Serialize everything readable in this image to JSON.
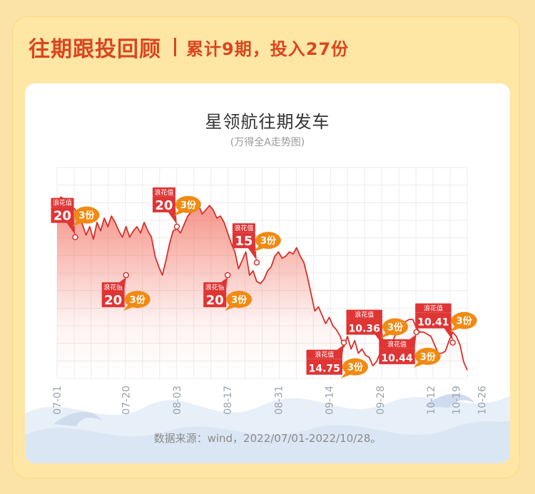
{
  "header": {
    "title": "往期跟投回顾",
    "subtitle": "累计9期，投入27份"
  },
  "chart_data": {
    "type": "line",
    "title": "星领航往期发车",
    "subtitle": "(万得全A走势图)",
    "x_ticks": [
      "07-01",
      "07-20",
      "08-03",
      "08-17",
      "08-31",
      "09-14",
      "09-28",
      "10-12",
      "10-19",
      "10-26"
    ],
    "grid": true,
    "series": [
      {
        "values": [
          [
            "07-01",
            83
          ],
          [
            "07-02",
            86
          ],
          [
            "07-03",
            85
          ],
          [
            "07-04",
            80
          ],
          [
            "07-05",
            82
          ],
          [
            "07-06",
            80
          ],
          [
            "07-07",
            77
          ],
          [
            "07-08",
            73
          ],
          [
            "07-09",
            68
          ],
          [
            "07-10",
            72
          ],
          [
            "07-11",
            66
          ],
          [
            "07-12",
            74
          ],
          [
            "07-13",
            70
          ],
          [
            "07-14",
            76
          ],
          [
            "07-15",
            72
          ],
          [
            "07-16",
            77
          ],
          [
            "07-17",
            74
          ],
          [
            "07-18",
            70
          ],
          [
            "07-19",
            67
          ],
          [
            "07-20",
            72
          ],
          [
            "07-21",
            67
          ],
          [
            "07-22",
            70
          ],
          [
            "07-23",
            72
          ],
          [
            "07-24",
            69
          ],
          [
            "07-25",
            74
          ],
          [
            "07-26",
            70
          ],
          [
            "07-27",
            67
          ],
          [
            "07-28",
            58
          ],
          [
            "07-29",
            53
          ],
          [
            "07-30",
            49
          ],
          [
            "07-31",
            56
          ],
          [
            "08-01",
            64
          ],
          [
            "08-02",
            70
          ],
          [
            "08-03",
            71
          ],
          [
            "08-04",
            69
          ],
          [
            "08-05",
            73
          ],
          [
            "08-06",
            77
          ],
          [
            "08-07",
            79
          ],
          [
            "08-08",
            80
          ],
          [
            "08-09",
            82
          ],
          [
            "08-10",
            78
          ],
          [
            "08-11",
            80
          ],
          [
            "08-12",
            82
          ],
          [
            "08-13",
            80
          ],
          [
            "08-14",
            76
          ],
          [
            "08-15",
            77
          ],
          [
            "08-16",
            74
          ],
          [
            "08-17",
            69
          ],
          [
            "08-18",
            64
          ],
          [
            "08-19",
            60
          ],
          [
            "08-20",
            52
          ],
          [
            "08-21",
            56
          ],
          [
            "08-22",
            60
          ],
          [
            "08-23",
            49
          ],
          [
            "08-24",
            51
          ],
          [
            "08-25",
            46
          ],
          [
            "08-26",
            45
          ],
          [
            "08-27",
            47
          ],
          [
            "08-28",
            51
          ],
          [
            "08-29",
            53
          ],
          [
            "08-30",
            58
          ],
          [
            "08-31",
            60
          ],
          [
            "09-01",
            57
          ],
          [
            "09-02",
            58
          ],
          [
            "09-03",
            60
          ],
          [
            "09-04",
            59
          ],
          [
            "09-05",
            62
          ],
          [
            "09-06",
            58
          ],
          [
            "09-07",
            55
          ],
          [
            "09-08",
            48
          ],
          [
            "09-09",
            40
          ],
          [
            "09-10",
            32
          ],
          [
            "09-11",
            34
          ],
          [
            "09-12",
            30
          ],
          [
            "09-13",
            26
          ],
          [
            "09-14",
            29
          ],
          [
            "09-15",
            25
          ],
          [
            "09-16",
            23
          ],
          [
            "09-17",
            20
          ],
          [
            "09-18",
            15
          ],
          [
            "09-19",
            20
          ],
          [
            "09-20",
            14
          ],
          [
            "09-21",
            18
          ],
          [
            "09-22",
            12
          ],
          [
            "09-23",
            14
          ],
          [
            "09-24",
            11
          ],
          [
            "09-25",
            10
          ],
          [
            "09-26",
            6
          ],
          [
            "09-27",
            8
          ],
          [
            "09-28",
            12
          ],
          [
            "09-29",
            9
          ],
          [
            "09-30",
            12
          ],
          [
            "10-01",
            15
          ],
          [
            "10-02",
            20
          ],
          [
            "10-03",
            22
          ],
          [
            "10-04",
            25
          ],
          [
            "10-05",
            27
          ],
          [
            "10-06",
            28
          ],
          [
            "10-07",
            28
          ],
          [
            "10-08",
            24
          ],
          [
            "10-09",
            22
          ],
          [
            "10-10",
            22
          ],
          [
            "10-11",
            21
          ],
          [
            "10-12",
            20
          ],
          [
            "10-13",
            16
          ],
          [
            "10-14",
            12
          ],
          [
            "10-15",
            12
          ],
          [
            "10-16",
            13
          ],
          [
            "10-17",
            18
          ],
          [
            "10-18",
            22
          ],
          [
            "10-19",
            20
          ],
          [
            "10-20",
            16
          ],
          [
            "10-21",
            8
          ],
          [
            "10-22",
            4
          ]
        ]
      }
    ],
    "markers": [
      {
        "x": "07-06",
        "y": 67,
        "label": "浪花值",
        "value": "20",
        "shares": "3份",
        "side": "above"
      },
      {
        "x": "07-20",
        "y": 49,
        "label": "浪花值",
        "value": "20",
        "shares": "3份",
        "side": "below"
      },
      {
        "x": "08-03",
        "y": 72,
        "label": "浪花值",
        "value": "20",
        "shares": "3份",
        "side": "above"
      },
      {
        "x": "08-17",
        "y": 49,
        "label": "浪花值",
        "value": "20",
        "shares": "3份",
        "side": "below"
      },
      {
        "x": "08-25",
        "y": 55,
        "label": "浪花值",
        "value": "15",
        "shares": "3份",
        "side": "above"
      },
      {
        "x": "09-18",
        "y": 17,
        "label": "浪花值",
        "value": "14.75",
        "shares": "3份",
        "side": "below"
      },
      {
        "x": "09-29",
        "y": 14,
        "label": "浪花值",
        "value": "10.36",
        "shares": "3份",
        "side": "above"
      },
      {
        "x": "10-08",
        "y": 22,
        "label": "浪花值",
        "value": "10.44",
        "shares": "3份",
        "side": "below"
      },
      {
        "x": "10-18",
        "y": 17,
        "label": "浪花值",
        "value": "10.41",
        "shares": "3份",
        "side": "above"
      }
    ]
  },
  "source": "数据来源：wind，2022/07/01-2022/10/28。",
  "colors": {
    "line": "#d9302a",
    "fill_top": "#f26a5a",
    "badge": "#df3535",
    "bubble": "#f08a12",
    "title": "#d9461f",
    "wave": "#dfe9f6"
  }
}
